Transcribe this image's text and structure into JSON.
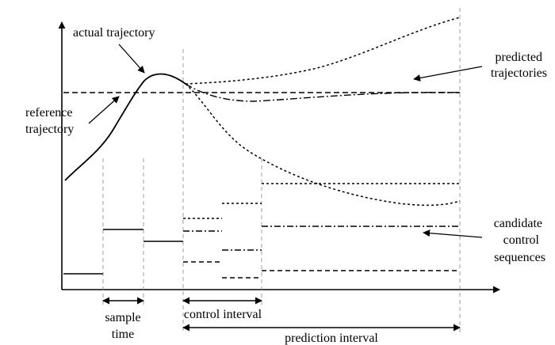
{
  "labels": {
    "actual_trajectory": "actual trajectory",
    "predicted_1": "predicted",
    "predicted_2": "trajectories",
    "reference_1": "reference",
    "reference_2": "trajectory",
    "candidate_1": "candidate",
    "candidate_2": "control",
    "candidate_3": "sequences",
    "sample_1": "sample",
    "sample_2": "time",
    "control_interval": "control interval",
    "prediction_interval": "prediction interval"
  }
}
